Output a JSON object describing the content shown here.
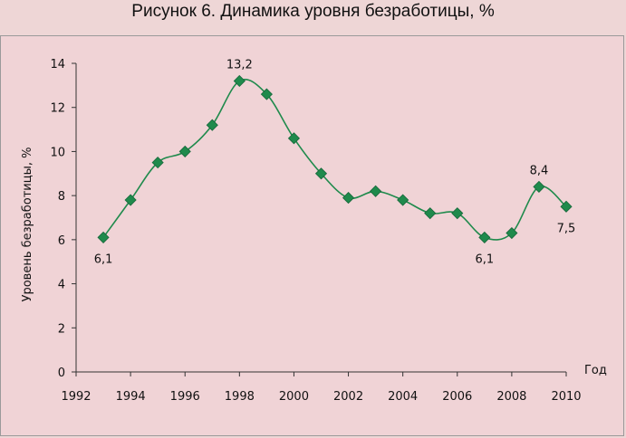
{
  "title": "Рисунок 6. Динамика уровня безработицы, %",
  "chart_data": {
    "type": "line",
    "title": "Рисунок 6. Динамика уровня безработицы, %",
    "xlabel": "Год",
    "ylabel": "Уровень безработицы, %",
    "xlim": [
      1992,
      2010
    ],
    "ylim": [
      0,
      14
    ],
    "x_ticks": [
      "1992",
      "1994",
      "1996",
      "1998",
      "2000",
      "2002",
      "2004",
      "2006",
      "2008",
      "2010"
    ],
    "y_ticks": [
      "0",
      "2",
      "4",
      "6",
      "8",
      "10",
      "12",
      "14"
    ],
    "grid": false,
    "legend": "none",
    "marker": "diamond",
    "line_style": "smooth",
    "color": "#1f8a4c",
    "x": [
      1993,
      1994,
      1995,
      1996,
      1997,
      1998,
      1999,
      2000,
      2001,
      2002,
      2003,
      2004,
      2005,
      2006,
      2007,
      2008,
      2009,
      2010
    ],
    "y": [
      6.1,
      7.8,
      9.5,
      10.0,
      11.2,
      13.2,
      12.6,
      10.6,
      9.0,
      7.9,
      8.2,
      7.8,
      7.2,
      7.2,
      6.1,
      6.3,
      8.4,
      7.5
    ],
    "data_labels": [
      {
        "x": 1993,
        "y": 6.1,
        "text": "6,1",
        "pos": "below"
      },
      {
        "x": 1998,
        "y": 13.2,
        "text": "13,2",
        "pos": "above"
      },
      {
        "x": 2007,
        "y": 6.1,
        "text": "6,1",
        "pos": "below"
      },
      {
        "x": 2009,
        "y": 8.4,
        "text": "8,4",
        "pos": "above"
      },
      {
        "x": 2010,
        "y": 7.5,
        "text": "7,5",
        "pos": "below"
      }
    ]
  }
}
